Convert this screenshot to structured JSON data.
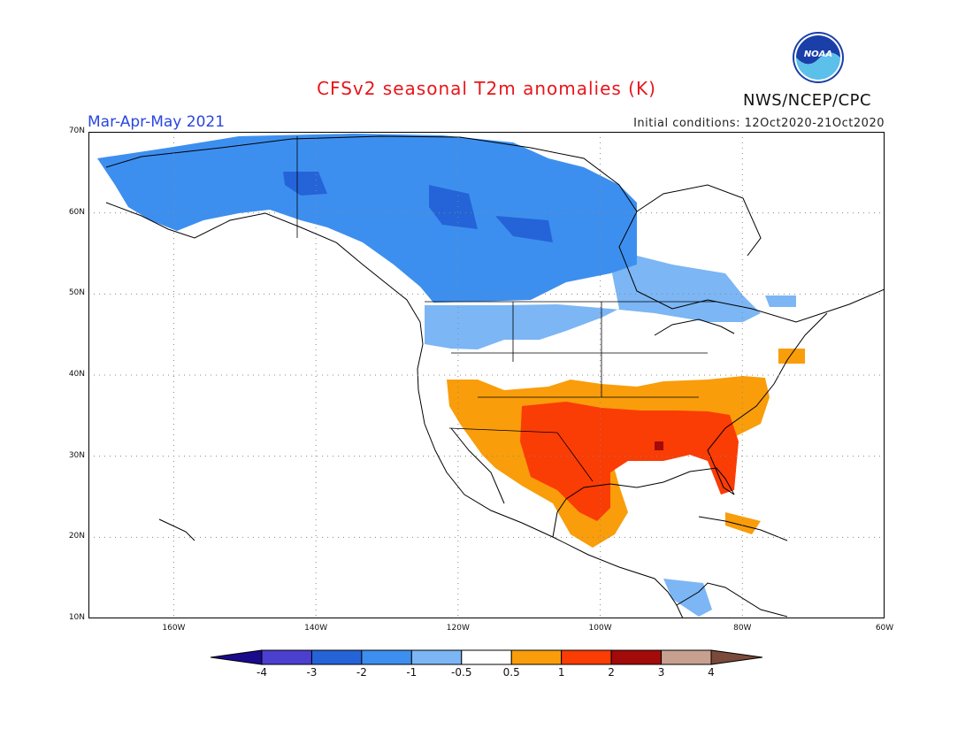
{
  "title": "CFSv2 seasonal T2m anomalies (K)",
  "season": "Mar-Apr-May 2021",
  "initial_conditions": "Initial conditions: 12Oct2020-21Oct2020",
  "agency": "NWS/NCEP/CPC",
  "logo_text": "NOAA",
  "map": {
    "lon_range": [
      -172,
      -60
    ],
    "lat_range": [
      10,
      70
    ],
    "lat_ticks": [
      {
        "value": 70,
        "label": "70N"
      },
      {
        "value": 60,
        "label": "60N"
      },
      {
        "value": 50,
        "label": "50N"
      },
      {
        "value": 40,
        "label": "40N"
      },
      {
        "value": 30,
        "label": "30N"
      },
      {
        "value": 20,
        "label": "20N"
      },
      {
        "value": 10,
        "label": "10N"
      }
    ],
    "lon_ticks": [
      {
        "value": -160,
        "label": "160W"
      },
      {
        "value": -140,
        "label": "140W"
      },
      {
        "value": -120,
        "label": "120W"
      },
      {
        "value": -100,
        "label": "100W"
      },
      {
        "value": -80,
        "label": "80W"
      },
      {
        "value": -60,
        "label": "60W"
      }
    ],
    "gridlines": "dotted"
  },
  "colorbar": {
    "labels": [
      "-4",
      "-3",
      "-2",
      "-1",
      "-0.5",
      "0.5",
      "1",
      "2",
      "3",
      "4"
    ],
    "colors": [
      "#1a0a8c",
      "#4b3fd0",
      "#2464d8",
      "#3d8fef",
      "#7cb6f4",
      "#ffffff",
      "#f99d0b",
      "#fa3c05",
      "#a30a0a",
      "#c8a090",
      "#7a4a3a"
    ]
  },
  "colors": {
    "title": "#e8161b",
    "season": "#2a46e0",
    "neg3": "#2464d8",
    "neg2": "#3d8fef",
    "neg1": "#7cb6f4",
    "pos1": "#f99d0b",
    "pos2": "#fa3c05",
    "pos3": "#a30a0a"
  }
}
